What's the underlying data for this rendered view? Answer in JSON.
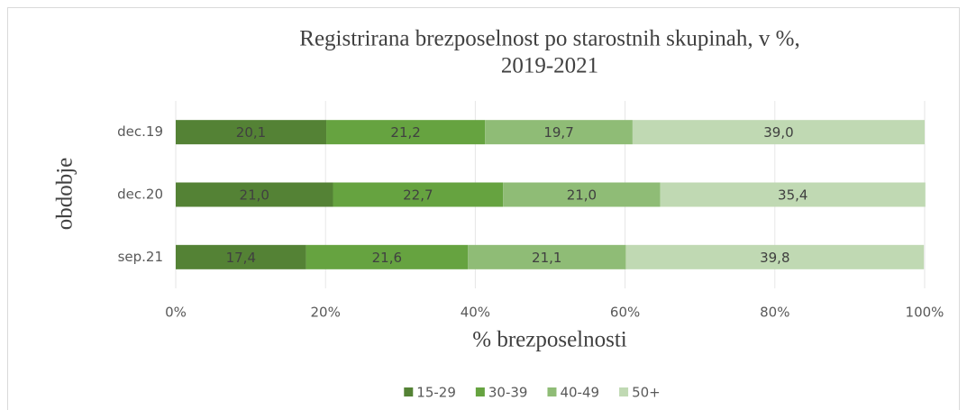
{
  "chart_data": {
    "type": "stacked-bar-horizontal",
    "title": [
      "Registrirana brezposelnost po starostnih skupinah, v %,",
      "2019-2021"
    ],
    "x_label": "% brezposelnosti",
    "y_label": "obdobje",
    "categories": [
      "dec.19",
      "dec.20",
      "sep.21"
    ],
    "series": [
      {
        "name": "15-29",
        "color": "#548235",
        "values": [
          20.1,
          21.0,
          17.4
        ],
        "value_labels": [
          "20,1",
          "21,0",
          "17,4"
        ]
      },
      {
        "name": "30-39",
        "color": "#66a340",
        "values": [
          21.2,
          22.7,
          21.6
        ],
        "value_labels": [
          "21,2",
          "22,7",
          "21,6"
        ]
      },
      {
        "name": "40-49",
        "color": "#8fbc76",
        "values": [
          19.7,
          21.0,
          21.1
        ],
        "value_labels": [
          "19,7",
          "21,0",
          "21,1"
        ]
      },
      {
        "name": "50+",
        "color": "#c0d9b3",
        "values": [
          39.0,
          35.4,
          39.8
        ],
        "value_labels": [
          "39,0",
          "35,4",
          "39,8"
        ]
      }
    ],
    "xlim": [
      0,
      100
    ],
    "xticks": [
      {
        "value": 0,
        "label": "0%"
      },
      {
        "value": 20,
        "label": "20%"
      },
      {
        "value": 40,
        "label": "40%"
      },
      {
        "value": 60,
        "label": "60%"
      },
      {
        "value": 80,
        "label": "80%"
      },
      {
        "value": 100,
        "label": "100%"
      }
    ],
    "grid": true,
    "legend": "bottom"
  }
}
